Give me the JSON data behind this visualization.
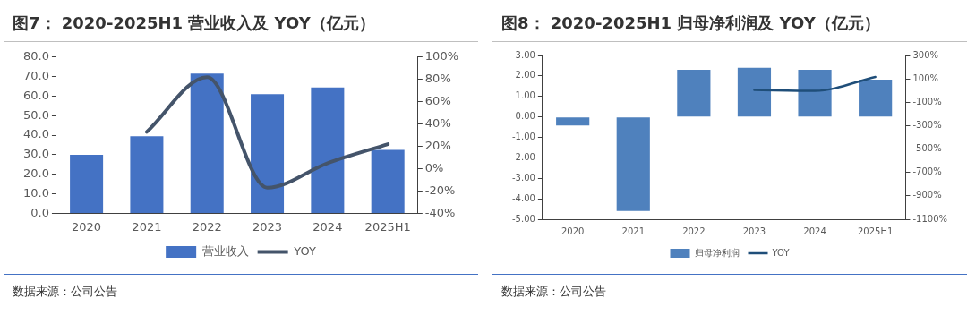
{
  "chart_data": [
    {
      "type": "bar",
      "title": "图7： 2020-2025H1 营业收入及 YOY（亿元）",
      "categories": [
        "2020",
        "2021",
        "2022",
        "2023",
        "2024",
        "2025H1"
      ],
      "series": [
        {
          "name": "营业收入",
          "color": "#4472c4",
          "values": [
            30,
            39.5,
            71.5,
            61,
            64.5,
            32.5
          ]
        },
        {
          "name": "YOY",
          "type": "line",
          "axis": "y2",
          "color": "#44546a",
          "values": [
            null,
            33,
            82,
            -17,
            5,
            22
          ]
        }
      ],
      "ylim": [
        0,
        80
      ],
      "yticks": [
        {
          "value": 0,
          "label": "0.0"
        },
        {
          "value": 10,
          "label": "10.0"
        },
        {
          "value": 20,
          "label": "20.0"
        },
        {
          "value": 30,
          "label": "30.0"
        },
        {
          "value": 40,
          "label": "40.0"
        },
        {
          "value": 50,
          "label": "50.0"
        },
        {
          "value": 60,
          "label": "60.0"
        },
        {
          "value": 70,
          "label": "70.0"
        },
        {
          "value": 80,
          "label": "80.0"
        }
      ],
      "y2lim": [
        -40,
        100
      ],
      "y2ticks": [
        {
          "value": -40,
          "label": "-40%"
        },
        {
          "value": -20,
          "label": "-20%"
        },
        {
          "value": 0,
          "label": "0%"
        },
        {
          "value": 20,
          "label": "20%"
        },
        {
          "value": 40,
          "label": "40%"
        },
        {
          "value": 60,
          "label": "60%"
        },
        {
          "value": 80,
          "label": "80%"
        },
        {
          "value": 100,
          "label": "100%"
        }
      ],
      "grid": false,
      "legend": "bottom",
      "marker": "none",
      "annotations": [
        "数据来源：公司公告"
      ]
    },
    {
      "type": "bar",
      "title": "图8： 2020-2025H1 归母净利润及 YOY（亿元）",
      "categories": [
        "2020",
        "2021",
        "2022",
        "2023",
        "2024",
        "2025H1"
      ],
      "series": [
        {
          "name": "归母净利润",
          "color": "#4f81bd",
          "values": [
            -0.42,
            -4.6,
            2.3,
            2.4,
            2.3,
            1.82
          ]
        },
        {
          "name": "YOY",
          "type": "line",
          "axis": "y2",
          "color": "#1f4e79",
          "values": [
            null,
            null,
            null,
            5,
            -2,
            117
          ]
        }
      ],
      "ylim": [
        -5,
        3
      ],
      "yticks": [
        {
          "value": -5,
          "label": "-5.00"
        },
        {
          "value": -4,
          "label": "-4.00"
        },
        {
          "value": -3,
          "label": "-3.00"
        },
        {
          "value": -2,
          "label": "-2.00"
        },
        {
          "value": -1,
          "label": "-1.00"
        },
        {
          "value": 0,
          "label": "0.00"
        },
        {
          "value": 1,
          "label": "1.00"
        },
        {
          "value": 2,
          "label": "2.00"
        },
        {
          "value": 3,
          "label": "3.00"
        }
      ],
      "y2lim": [
        -1100,
        300
      ],
      "y2ticks": [
        {
          "value": -1100,
          "label": "-1100%"
        },
        {
          "value": -900,
          "label": "-900%"
        },
        {
          "value": -700,
          "label": "-700%"
        },
        {
          "value": -500,
          "label": "-500%"
        },
        {
          "value": -300,
          "label": "-300%"
        },
        {
          "value": -100,
          "label": "-100%"
        },
        {
          "value": 100,
          "label": "100%"
        },
        {
          "value": 300,
          "label": "300%"
        }
      ],
      "grid": false,
      "legend": "bottom",
      "marker": "none",
      "annotations": [
        "数据来源：公司公告"
      ]
    }
  ]
}
